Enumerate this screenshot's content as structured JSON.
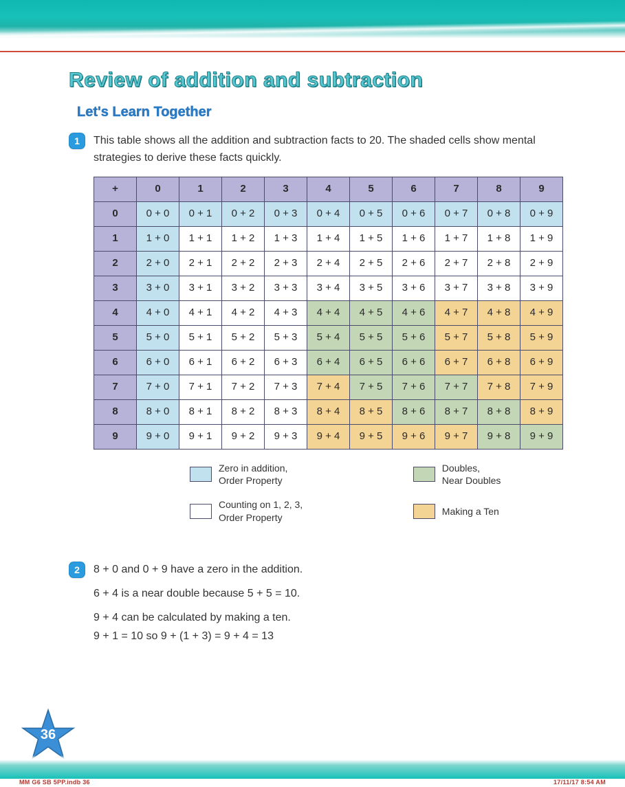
{
  "page": {
    "title": "Review of addition and subtraction",
    "section_title": "Let's Learn Together",
    "number": "36"
  },
  "colors": {
    "teal": "#17c1b9",
    "title": "#58c7d0",
    "title_stroke": "#1f7f88",
    "section": "#2b79c2",
    "badge_bg": "#2b9be0",
    "rule": "#d24a3a",
    "border": "#4a4a6a",
    "header_fill": "#b7b2d8",
    "blue_fill": "#c2e1ef",
    "white_fill": "#ffffff",
    "green_fill": "#c3d6b5",
    "orange_fill": "#f3d495",
    "star_fill": "#3a8fd6",
    "star_stroke": "#2c6fa8",
    "footer_text": "#b03a31"
  },
  "items": {
    "one": {
      "badge": "1",
      "intro": "This table shows all the addition and subtraction facts to 20. The shaded cells show mental strategies to derive these facts quickly."
    },
    "two": {
      "badge": "2",
      "line1": "8 + 0 and 0 + 9 have a zero in the addition.",
      "line2": "6 + 4 is a near double because 5 + 5 = 10.",
      "line3": "9 + 4 can be calculated by making a ten.",
      "line4": "9 + 1 = 10 so 9 + (1 + 3) = 9 + 4 = 13"
    }
  },
  "table": {
    "corner": "+",
    "col_headers": [
      "0",
      "1",
      "2",
      "3",
      "4",
      "5",
      "6",
      "7",
      "8",
      "9"
    ],
    "row_headers": [
      "0",
      "1",
      "2",
      "3",
      "4",
      "5",
      "6",
      "7",
      "8",
      "9"
    ],
    "cells": [
      [
        "0 + 0",
        "0 + 1",
        "0 + 2",
        "0 + 3",
        "0 + 4",
        "0 + 5",
        "0 + 6",
        "0 + 7",
        "0 + 8",
        "0 + 9"
      ],
      [
        "1 + 0",
        "1 + 1",
        "1 + 2",
        "1 + 3",
        "1 + 4",
        "1 + 5",
        "1 + 6",
        "1 + 7",
        "1 + 8",
        "1 + 9"
      ],
      [
        "2 + 0",
        "2 + 1",
        "2 + 2",
        "2 + 3",
        "2 + 4",
        "2 + 5",
        "2 + 6",
        "2 + 7",
        "2 + 8",
        "2 + 9"
      ],
      [
        "3 + 0",
        "3 + 1",
        "3 + 2",
        "3 + 3",
        "3 + 4",
        "3 + 5",
        "3 + 6",
        "3 + 7",
        "3 + 8",
        "3 + 9"
      ],
      [
        "4 + 0",
        "4 + 1",
        "4 + 2",
        "4 + 3",
        "4 + 4",
        "4 + 5",
        "4 + 6",
        "4 + 7",
        "4 + 8",
        "4 + 9"
      ],
      [
        "5 + 0",
        "5 + 1",
        "5 + 2",
        "5 + 3",
        "5 + 4",
        "5 + 5",
        "5 + 6",
        "5 + 7",
        "5 + 8",
        "5 + 9"
      ],
      [
        "6 + 0",
        "6 + 1",
        "6 + 2",
        "6 + 3",
        "6 + 4",
        "6 + 5",
        "6 + 6",
        "6 + 7",
        "6 + 8",
        "6 + 9"
      ],
      [
        "7 + 0",
        "7 + 1",
        "7 + 2",
        "7 + 3",
        "7 + 4",
        "7 + 5",
        "7 + 6",
        "7 + 7",
        "7 + 8",
        "7 + 9"
      ],
      [
        "8 + 0",
        "8 + 1",
        "8 + 2",
        "8 + 3",
        "8 + 4",
        "8 + 5",
        "8 + 6",
        "8 + 7",
        "8 + 8",
        "8 + 9"
      ],
      [
        "9 + 0",
        "9 + 1",
        "9 + 2",
        "9 + 3",
        "9 + 4",
        "9 + 5",
        "9 + 6",
        "9 + 7",
        "9 + 8",
        "9 + 9"
      ]
    ],
    "shading": [
      [
        "blue",
        "blue",
        "blue",
        "blue",
        "blue",
        "blue",
        "blue",
        "blue",
        "blue",
        "blue"
      ],
      [
        "blue",
        "white",
        "white",
        "white",
        "white",
        "white",
        "white",
        "white",
        "white",
        "white"
      ],
      [
        "blue",
        "white",
        "white",
        "white",
        "white",
        "white",
        "white",
        "white",
        "white",
        "white"
      ],
      [
        "blue",
        "white",
        "white",
        "white",
        "white",
        "white",
        "white",
        "white",
        "white",
        "white"
      ],
      [
        "blue",
        "white",
        "white",
        "white",
        "green",
        "green",
        "green",
        "orange",
        "orange",
        "orange"
      ],
      [
        "blue",
        "white",
        "white",
        "white",
        "green",
        "green",
        "green",
        "orange",
        "orange",
        "orange"
      ],
      [
        "blue",
        "white",
        "white",
        "white",
        "green",
        "green",
        "green",
        "orange",
        "orange",
        "orange"
      ],
      [
        "blue",
        "white",
        "white",
        "white",
        "orange",
        "green",
        "green",
        "green",
        "orange",
        "orange"
      ],
      [
        "blue",
        "white",
        "white",
        "white",
        "orange",
        "orange",
        "green",
        "green",
        "green",
        "orange"
      ],
      [
        "blue",
        "white",
        "white",
        "white",
        "orange",
        "orange",
        "orange",
        "orange",
        "green",
        "green"
      ]
    ]
  },
  "legend": {
    "zero": {
      "swatch": "blue_fill",
      "label": "Zero in addition,\nOrder Property"
    },
    "doubles": {
      "swatch": "green_fill",
      "label": "Doubles,\nNear Doubles"
    },
    "count": {
      "swatch": "white_fill",
      "label": "Counting on 1, 2, 3,\nOrder Property"
    },
    "ten": {
      "swatch": "orange_fill",
      "label": "Making a Ten"
    }
  },
  "footer": {
    "left": "MM G6 SB 5PP.indb   36",
    "right": "17/11/17   8:54 AM"
  }
}
